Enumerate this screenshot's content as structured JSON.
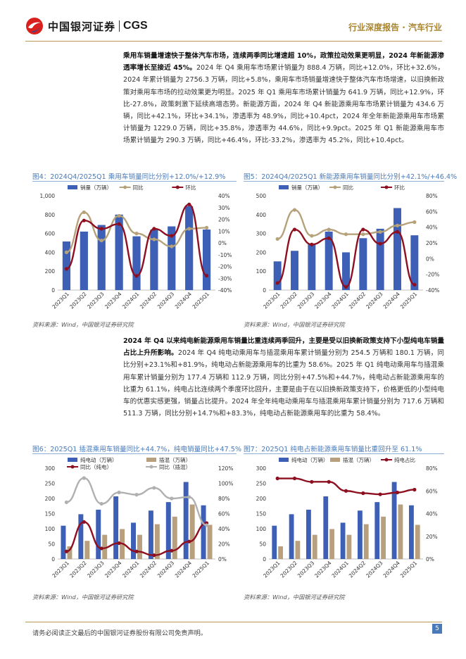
{
  "header": {
    "logo_cn": "中国银河证券",
    "logo_en": "CGS",
    "report_type": "行业深度报告 · 汽车行业",
    "brand_colors": {
      "red": "#d9201e",
      "blue": "#1f4f9e",
      "gold": "#a8842f"
    }
  },
  "para1": {
    "lead": "乘用车销量增速快于整体汽车市场，连续两季同比增速超 10%，政策拉动效果更明显，2024 年新能源渗透率增长至接近 45%。",
    "body": "2024 年 Q4 乘用车市场累计销量为 888.4 万辆，同比+12.0%，环比+32.6%，2024 年累计销量为 2756.3 万辆，同比+5.8%，乘用车市场销量增速快于整体汽车市场增速，以旧换新政策对乘用车市场的拉动效果更为明显。2025 年 Q1 乘用车市场累计销量为 641.9 万辆，同比+12.9%，环比-27.8%，政策刺激下延续高增态势。新能源方面，2024 年 Q4 新能源乘用车市场累计销量为 434.6 万辆，同比+42.1%，环比+34.1%，渗透率为 48.9%，同比+10.4pct，2024 年全年新能源乘用车市场累计销量为 1229.0 万辆，同比+35.8%，渗透率为 44.6%，同比+9.9pct。2025 年 Q1 新能源乘用车市场累计销量为 290.3 万辆，同比+46.4%，环比-33.2%，渗透率为 45.2%，同比+10.4pct。"
  },
  "para2": {
    "lead": "2024 年 Q4 以来纯电新能源乘用车销量比重连续两季回升，主要是受以旧换新政策支持下小型纯电车销量占比上升所影响。",
    "body": "2024 年 Q4 纯电动乘用车与插混乘用车累计销量分别为 254.5 万辆和 180.1 万辆，同比分别+23.1%和+81.9%，纯电动占新能源乘用车的比重为 58.6%。2025 年 Q1 纯电动乘用车与插混乘用车累计销量分别为 177.4 万辆和 112.9 万辆，同比分别+47.5%和+44.7%，纯电动占新能源乘用车的比重为 61.1%，纯电占比连续两个季度环比回升，主要是由于在以旧换新政策支持下，价格更低的小型纯电车的优惠实感更强，销量占比提升。2024 年全年纯电动乘用车与插混乘用车累计销量分别为 717.6 万辆和 511.3 万辆，同比分别+14.7%和+83.3%，纯电动占新能源乘用车的比重为 58.4%。"
  },
  "source_text": "资料来源：Wind，中国银河证券研究院",
  "footer": {
    "disclaimer": "请务必阅读正文最后的中国银河证券股份有限公司免责声明。",
    "page": "5"
  },
  "chart_data": [
    {
      "id": "fig4",
      "type": "bar",
      "title": "图4：2024Q4/2025Q1 乘用车销量同比分别+12.0%/+12.9%",
      "categories": [
        "2023Q1",
        "2023Q2",
        "2023Q3",
        "2023Q4",
        "2024Q1",
        "2024Q2",
        "2024Q3",
        "2024Q4",
        "2025Q1"
      ],
      "series": [
        {
          "name": "销量（万辆）",
          "type": "bar",
          "axis": "left",
          "color": "#3d5fb5",
          "values": [
            515,
            620,
            690,
            800,
            570,
            640,
            675,
            888.4,
            641.9
          ]
        },
        {
          "name": "同比",
          "type": "line",
          "axis": "right",
          "color": "#b5a27a",
          "values": [
            -8,
            26,
            2,
            23,
            8,
            3,
            -3,
            12.0,
            12.9
          ]
        },
        {
          "name": "环比",
          "type": "line",
          "axis": "right",
          "color": "#8e1020",
          "values": [
            -22,
            19,
            12,
            16,
            -28,
            12,
            6,
            32.6,
            -27.8
          ]
        }
      ],
      "left_ticks": [
        "1,000",
        "800",
        "600",
        "400",
        "200",
        "0"
      ],
      "left_range": [
        0,
        1000
      ],
      "right_ticks": [
        "40%",
        "30%",
        "20%",
        "10%",
        "0%",
        "-10%",
        "-20%",
        "-30%",
        "-40%"
      ],
      "right_range": [
        -40,
        40
      ],
      "legend": "top"
    },
    {
      "id": "fig5",
      "type": "bar",
      "title": "图5：2024Q4/2025Q1 新能源乘用车销量同比分别+42.1%/+46.4%",
      "categories": [
        "2023Q1",
        "2023Q2",
        "2023Q3",
        "2023Q4",
        "2024Q1",
        "2024Q2",
        "2024Q3",
        "2024Q4",
        "2025Q1"
      ],
      "series": [
        {
          "name": "销量（万辆）",
          "type": "bar",
          "axis": "left",
          "color": "#3d5fb5",
          "values": [
            152,
            208,
            245,
            310,
            200,
            275,
            325,
            434.6,
            290.3
          ]
        },
        {
          "name": "同比",
          "type": "line",
          "axis": "right",
          "color": "#b5a27a",
          "values": [
            25,
            62,
            29,
            37,
            31,
            31,
            34,
            42.1,
            46.4
          ]
        },
        {
          "name": "环比",
          "type": "line",
          "axis": "right",
          "color": "#8e1020",
          "values": [
            -31,
            37,
            18,
            26,
            -36,
            37,
            19,
            34.1,
            -33.2
          ]
        }
      ],
      "left_ticks": [
        "500",
        "400",
        "300",
        "200",
        "100",
        "0"
      ],
      "left_range": [
        0,
        500
      ],
      "right_ticks": [
        "80%",
        "60%",
        "40%",
        "20%",
        "0%",
        "-20%",
        "-40%"
      ],
      "right_range": [
        -40,
        80
      ],
      "legend": "top"
    },
    {
      "id": "fig6",
      "type": "bar",
      "title": "图6：2025Q1 插混乘用车销量同比+44.7%，纯电销量同比+47.5%",
      "categories": [
        "2023Q1",
        "2023Q2",
        "2023Q3",
        "2023Q4",
        "2024Q1",
        "2024Q2",
        "2024Q3",
        "2024Q4",
        "2025Q1"
      ],
      "series": [
        {
          "name": "纯电动（万辆）",
          "type": "bar",
          "axis": "left",
          "color": "#3d5fb5",
          "values": [
            110,
            148,
            163,
            207,
            120,
            160,
            188,
            254.5,
            177.4
          ]
        },
        {
          "name": "插混（万辆）",
          "type": "bar",
          "axis": "left",
          "color": "#b8a07e",
          "values": [
            42,
            60,
            80,
            99,
            80,
            115,
            140,
            180.1,
            112.9
          ]
        },
        {
          "name": "同比（纯电）",
          "type": "line",
          "axis": "right",
          "color": "#8e1020",
          "values": [
            10,
            49,
            14,
            21,
            10,
            5,
            11,
            23.1,
            47.5
          ]
        },
        {
          "name": "同比（插混）",
          "type": "line",
          "axis": "right",
          "color": "#b0b0b0",
          "values": [
            75,
            107,
            73,
            88,
            85,
            94,
            80,
            81.9,
            44.7
          ]
        }
      ],
      "left_ticks": [
        "300",
        "250",
        "200",
        "150",
        "100",
        "50",
        "0"
      ],
      "left_range": [
        0,
        300
      ],
      "right_ticks": [
        "120%",
        "100%",
        "80%",
        "60%",
        "40%",
        "20%",
        "0%"
      ],
      "right_range": [
        0,
        120
      ],
      "legend": "top"
    },
    {
      "id": "fig7",
      "type": "bar",
      "title": "图7：2025Q1 纯电占新能源乘用车销量比重回升至 61.1%",
      "categories": [
        "2023Q1",
        "2023Q2",
        "2023Q3",
        "2023Q4",
        "2024Q1",
        "2024Q2",
        "2024Q3",
        "2024Q4",
        "2025Q1"
      ],
      "series": [
        {
          "name": "纯电动（万辆）",
          "type": "bar",
          "axis": "left",
          "color": "#3d5fb5",
          "values": [
            110,
            148,
            163,
            207,
            120,
            160,
            188,
            254.5,
            177.4
          ]
        },
        {
          "name": "插混（万辆）",
          "type": "bar",
          "axis": "left",
          "color": "#b8a07e",
          "values": [
            42,
            60,
            80,
            99,
            80,
            115,
            140,
            180.1,
            112.9
          ]
        },
        {
          "name": "纯电占比",
          "type": "line",
          "axis": "right",
          "color": "#8e1020",
          "values": [
            71,
            71,
            68,
            68,
            60,
            58,
            57,
            58.6,
            61.1
          ]
        }
      ],
      "left_ticks": [
        "300",
        "250",
        "200",
        "150",
        "100",
        "50",
        "0"
      ],
      "left_range": [
        0,
        300
      ],
      "right_ticks": [
        "80%",
        "60%",
        "40%",
        "20%",
        "0%"
      ],
      "right_range": [
        0,
        80
      ],
      "legend": "top"
    }
  ]
}
